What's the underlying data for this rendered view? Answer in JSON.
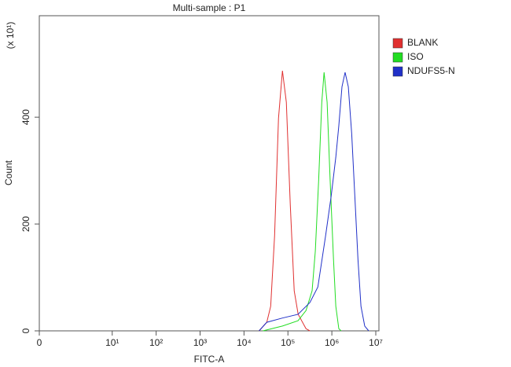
{
  "chart_data": {
    "type": "line",
    "title": "Multi-sample : P1",
    "x_label": "FITC-A",
    "y_label": "Count",
    "y_multiplier_label": "(x 10¹)",
    "xlim": [
      0,
      10000000
    ],
    "xticks": [
      0,
      {
        "value": 10,
        "label": "10¹"
      },
      {
        "value": 100,
        "label": "10²"
      },
      {
        "value": 1000,
        "label": "10³"
      },
      {
        "value": 10000,
        "label": "10⁴"
      },
      {
        "value": 100000,
        "label": "10⁵"
      },
      {
        "value": 1000000,
        "label": "10⁶"
      },
      {
        "value": 10000000,
        "label": "10⁷"
      }
    ],
    "ylim": [
      0,
      590
    ],
    "yticks": [
      0,
      200,
      400
    ],
    "legend": "right",
    "series": [
      {
        "name": "BLANK",
        "color": "#e03030",
        "x": [
          22000,
          33000,
          40500,
          49700,
          61000,
          75000,
          92000,
          113000,
          139000,
          171000,
          258000,
          316000
        ],
        "values": [
          0,
          16,
          46,
          178,
          398,
          487,
          428,
          237,
          75,
          31,
          4,
          0
        ]
      },
      {
        "name": "ISO",
        "color": "#22dd22",
        "x": [
          27000,
          75000,
          170000,
          258000,
          355000,
          420000,
          500000,
          590000,
          665000,
          780000,
          915000,
          1090000,
          1230000,
          1440000,
          1630000
        ],
        "values": [
          0,
          9,
          19,
          38,
          75,
          149,
          281,
          428,
          484,
          428,
          281,
          134,
          46,
          4,
          0
        ]
      },
      {
        "name": "NDUFS5-N",
        "color": "#2030c8",
        "x": [
          22000,
          33000,
          75000,
          170000,
          316000,
          480000,
          720000,
          960000,
          1230000,
          1440000,
          1700000,
          2000000,
          2370000,
          2830000,
          3340000,
          3930000,
          4600000,
          5600000,
          6900000
        ],
        "values": [
          0,
          16,
          24,
          31,
          53,
          82,
          178,
          251,
          325,
          384,
          457,
          484,
          457,
          369,
          251,
          134,
          46,
          9,
          0
        ]
      }
    ]
  }
}
